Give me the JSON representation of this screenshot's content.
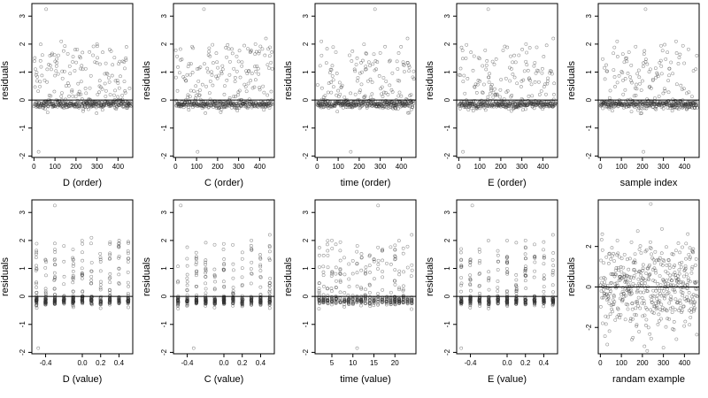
{
  "chart_data": [
    {
      "type": "scatter",
      "xlabel": "D (order)",
      "ylabel": "residuals",
      "xlim": [
        -10,
        470
      ],
      "ylim": [
        -2.05,
        3.45
      ],
      "xticks": [
        0,
        100,
        200,
        300,
        400
      ],
      "yticks": [
        -2,
        -1,
        0,
        1,
        2,
        3
      ],
      "hline": 0,
      "pattern": "order",
      "x_range": [
        1,
        460
      ],
      "outliers": [
        {
          "x": 58,
          "y": 3.25
        },
        {
          "x": 22,
          "y": -1.85
        },
        {
          "x": 130,
          "y": 2.1
        },
        {
          "x": 300,
          "y": 2.0
        },
        {
          "x": 440,
          "y": 1.9
        }
      ]
    },
    {
      "type": "scatter",
      "xlabel": "C (order)",
      "ylabel": "residuals",
      "xlim": [
        -10,
        470
      ],
      "ylim": [
        -2.05,
        3.45
      ],
      "xticks": [
        0,
        100,
        200,
        300,
        400
      ],
      "yticks": [
        -2,
        -1,
        0,
        1,
        2,
        3
      ],
      "hline": 0,
      "pattern": "order",
      "x_range": [
        1,
        460
      ],
      "outliers": [
        {
          "x": 135,
          "y": 3.25
        },
        {
          "x": 105,
          "y": -1.85
        },
        {
          "x": 430,
          "y": 2.2
        },
        {
          "x": 380,
          "y": 2.0
        }
      ]
    },
    {
      "type": "scatter",
      "xlabel": "time (order)",
      "ylabel": "residuals",
      "xlim": [
        -10,
        470
      ],
      "ylim": [
        -2.05,
        3.45
      ],
      "xticks": [
        0,
        100,
        200,
        300,
        400
      ],
      "yticks": [
        -2,
        -1,
        0,
        1,
        2,
        3
      ],
      "hline": 0,
      "pattern": "order",
      "x_range": [
        1,
        460
      ],
      "outliers": [
        {
          "x": 275,
          "y": 3.25
        },
        {
          "x": 160,
          "y": -1.85
        },
        {
          "x": 20,
          "y": 2.1
        },
        {
          "x": 430,
          "y": 2.2
        }
      ]
    },
    {
      "type": "scatter",
      "xlabel": "E (order)",
      "ylabel": "residuals",
      "xlim": [
        -10,
        470
      ],
      "ylim": [
        -2.05,
        3.45
      ],
      "xticks": [
        0,
        100,
        200,
        300,
        400
      ],
      "yticks": [
        -2,
        -1,
        0,
        1,
        2,
        3
      ],
      "hline": 0,
      "pattern": "order",
      "x_range": [
        1,
        460
      ],
      "outliers": [
        {
          "x": 140,
          "y": 3.25
        },
        {
          "x": 20,
          "y": -1.85
        },
        {
          "x": 450,
          "y": 2.2
        },
        {
          "x": 320,
          "y": 2.0
        }
      ]
    },
    {
      "type": "scatter",
      "xlabel": "sample index",
      "ylabel": "residuals",
      "xlim": [
        -10,
        470
      ],
      "ylim": [
        -2.05,
        3.45
      ],
      "xticks": [
        0,
        100,
        200,
        300,
        400
      ],
      "yticks": [
        -2,
        -1,
        0,
        1,
        2,
        3
      ],
      "hline": 0,
      "pattern": "order",
      "x_range": [
        1,
        460
      ],
      "outliers": [
        {
          "x": 215,
          "y": 3.25
        },
        {
          "x": 205,
          "y": -1.85
        },
        {
          "x": 80,
          "y": 2.1
        },
        {
          "x": 360,
          "y": 2.1
        }
      ]
    },
    {
      "type": "scatter",
      "xlabel": "D (value)",
      "ylabel": "residuals",
      "xlim": [
        -0.55,
        0.55
      ],
      "ylim": [
        -2.05,
        3.45
      ],
      "xticks": [
        -0.4,
        0.0,
        0.2,
        0.4
      ],
      "xticklabels": [
        "-0.4",
        "0.0",
        "0.2",
        "0.4"
      ],
      "yticks": [
        -2,
        -1,
        0,
        1,
        2,
        3
      ],
      "hline": 0,
      "pattern": "levels",
      "levels": [
        -0.5,
        -0.4,
        -0.3,
        -0.2,
        -0.1,
        0.0,
        0.1,
        0.2,
        0.3,
        0.4,
        0.5
      ],
      "outliers": [
        {
          "x": -0.3,
          "y": 3.25
        },
        {
          "x": -0.48,
          "y": -1.85
        },
        {
          "x": 0.1,
          "y": 2.1
        },
        {
          "x": 0.4,
          "y": 1.9
        }
      ]
    },
    {
      "type": "scatter",
      "xlabel": "C (value)",
      "ylabel": "residuals",
      "xlim": [
        -0.55,
        0.55
      ],
      "ylim": [
        -2.05,
        3.45
      ],
      "xticks": [
        -0.4,
        0.0,
        0.2,
        0.4
      ],
      "xticklabels": [
        "-0.4",
        "0.0",
        "0.2",
        "0.4"
      ],
      "yticks": [
        -2,
        -1,
        0,
        1,
        2,
        3
      ],
      "hline": 0,
      "pattern": "levels",
      "levels": [
        -0.5,
        -0.4,
        -0.3,
        -0.2,
        -0.1,
        0.0,
        0.1,
        0.2,
        0.3,
        0.4,
        0.5
      ],
      "outliers": [
        {
          "x": -0.47,
          "y": 3.25
        },
        {
          "x": -0.33,
          "y": -1.85
        },
        {
          "x": 0.5,
          "y": 2.2
        },
        {
          "x": 0.3,
          "y": 2.0
        }
      ]
    },
    {
      "type": "scatter",
      "xlabel": "time (value)",
      "ylabel": "residuals",
      "xlim": [
        1,
        25
      ],
      "ylim": [
        -2.05,
        3.45
      ],
      "xticks": [
        5,
        10,
        15,
        20
      ],
      "xticklabels": [
        "5",
        "10",
        "15",
        "20"
      ],
      "yticks": [
        -2,
        -1,
        0,
        1,
        2,
        3
      ],
      "hline": 0,
      "pattern": "levels",
      "levels": [
        2,
        3,
        4,
        5,
        6,
        7,
        8,
        9,
        10,
        11,
        12,
        13,
        14,
        15,
        16,
        17,
        18,
        19,
        20,
        21,
        22,
        23,
        24
      ],
      "outliers": [
        {
          "x": 16,
          "y": 3.25
        },
        {
          "x": 11,
          "y": -1.85
        },
        {
          "x": 24,
          "y": 2.2
        },
        {
          "x": 5,
          "y": 2.0
        }
      ]
    },
    {
      "type": "scatter",
      "xlabel": "E (value)",
      "ylabel": "residuals",
      "xlim": [
        -0.55,
        0.55
      ],
      "ylim": [
        -2.05,
        3.45
      ],
      "xticks": [
        -0.4,
        0.0,
        0.2,
        0.4
      ],
      "xticklabels": [
        "-0.4",
        "0.0",
        "0.2",
        "0.4"
      ],
      "yticks": [
        -2,
        -1,
        0,
        1,
        2,
        3
      ],
      "hline": 0,
      "pattern": "levels",
      "levels": [
        -0.5,
        -0.4,
        -0.3,
        -0.2,
        -0.1,
        0.0,
        0.1,
        0.2,
        0.3,
        0.4,
        0.5
      ],
      "outliers": [
        {
          "x": -0.38,
          "y": 3.25
        },
        {
          "x": -0.5,
          "y": -1.85
        },
        {
          "x": 0.5,
          "y": 2.2
        },
        {
          "x": 0.2,
          "y": 2.0
        }
      ]
    },
    {
      "type": "scatter",
      "xlabel": "randam example",
      "ylabel": "residuals",
      "xlim": [
        -10,
        470
      ],
      "ylim": [
        -3.3,
        4.3
      ],
      "xticks": [
        0,
        100,
        200,
        300,
        400
      ],
      "yticks": [
        -2,
        0,
        2
      ],
      "hline": 0,
      "pattern": "random",
      "x_range": [
        1,
        460
      ],
      "outliers": [
        {
          "x": 240,
          "y": 4.1
        },
        {
          "x": 300,
          "y": -3.0
        },
        {
          "x": 150,
          "y": -2.6
        }
      ]
    }
  ]
}
